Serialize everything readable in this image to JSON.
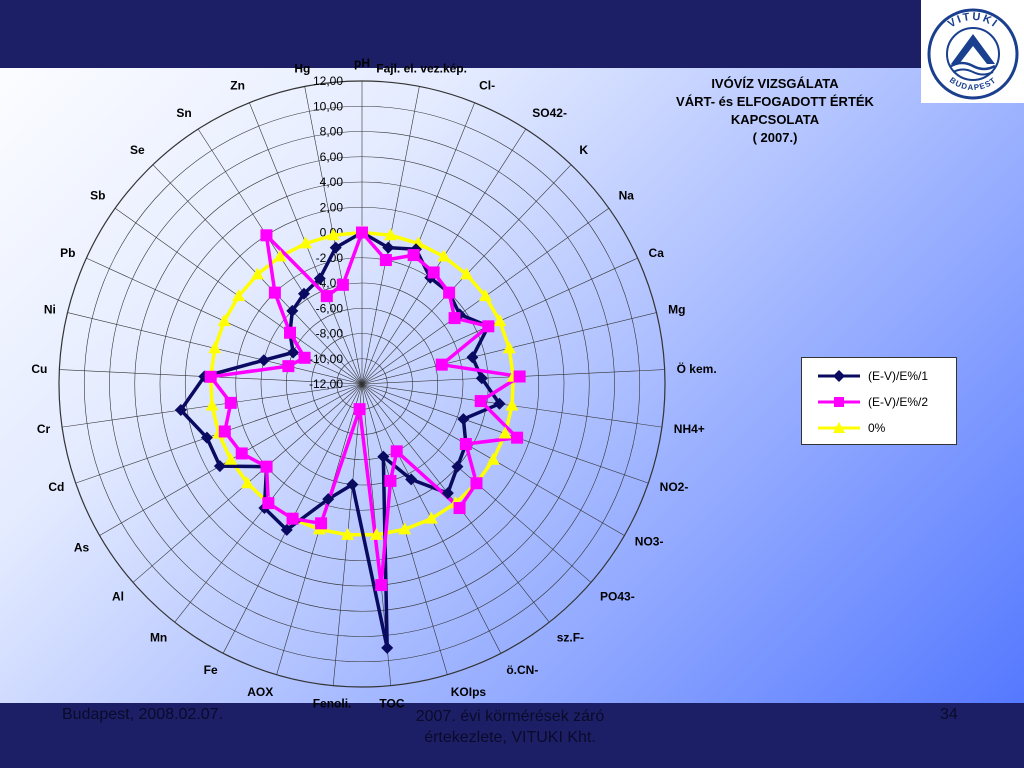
{
  "footer": {
    "date": "Budapest, 2008.02.07.",
    "event_line1": "2007. évi körmérések záró",
    "event_line2": "értekezlete, VITUKI Kht.",
    "page": "34"
  },
  "logo": {
    "top_text": "VITUKI",
    "bottom_text": "BUDAPEST"
  },
  "chart_data": {
    "type": "radar",
    "title_lines": [
      "IVÓVÍZ VIZSGÁLATA",
      "VÁRT- és  ELFOGADOTT ÉRTÉK",
      "KAPCSOLATA",
      "( 2007.)"
    ],
    "categories": [
      "pH",
      "Fajl. el. vez.kép.",
      "Cl-",
      "SO42-",
      "K",
      "Na",
      "Ca",
      "Mg",
      "Ö kem.",
      "NH4+",
      "NO2-",
      "NO3-",
      "PO43-",
      "sz.F-",
      "ö.CN-",
      "KOIps",
      "TOC",
      "Fenoli.",
      "AOX",
      "Fe",
      "Mn",
      "Al",
      "As",
      "Cd",
      "Cr",
      "Cu",
      "Ni",
      "Pb",
      "Sb",
      "Se",
      "Sn",
      "Zn",
      "Hg"
    ],
    "radial_ticks": [
      "12,00",
      "10,00",
      "8,00",
      "6,00",
      "4,00",
      "2,00",
      "0,00",
      "-2,00",
      "-4,00",
      "-6,00",
      "-8,00",
      "-10,00",
      "-12,00"
    ],
    "rlim": [
      -12,
      12
    ],
    "legend_position": "right",
    "series": [
      {
        "name": "(E-V)/E%/1",
        "color": "#0a0a60",
        "marker": "diamond",
        "values": [
          0.0,
          -1.0,
          -0.5,
          -2.0,
          -2.0,
          -2.5,
          -1.0,
          -3.0,
          -2.5,
          -1.0,
          -3.5,
          -2.5,
          -2.0,
          -1.0,
          -3.5,
          -6.0,
          9.0,
          -4.0,
          -2.5,
          1.0,
          0.5,
          -2.0,
          1.0,
          1.0,
          2.5,
          0.5,
          -4.0,
          -6.0,
          -5.0,
          -4.0,
          -3.5,
          -3.0,
          -1.0
        ]
      },
      {
        "name": "(E-V)/E%/2",
        "color": "#ff00ff",
        "marker": "square",
        "values": [
          0.0,
          -2.0,
          -1.0,
          -1.5,
          -2.0,
          -3.0,
          -1.0,
          -5.5,
          0.5,
          -2.5,
          1.0,
          -2.5,
          0.0,
          0.5,
          -6.0,
          -4.0,
          4.0,
          -10.0,
          -0.5,
          0.0,
          0.0,
          -2.0,
          -1.0,
          -0.5,
          -1.5,
          0.0,
          -6.0,
          -7.0,
          -5.0,
          -2.0,
          2.0,
          -4.5,
          -4.0
        ]
      },
      {
        "name": "0%",
        "color": "#ffff00",
        "marker": "triangle",
        "values": [
          0,
          0,
          0,
          0,
          0,
          0,
          0,
          0,
          0,
          0,
          0,
          0,
          0,
          0,
          0,
          0,
          0,
          0,
          0,
          0,
          0,
          0,
          0,
          0,
          0,
          0,
          0,
          0,
          0,
          0,
          0,
          0,
          0
        ]
      }
    ]
  }
}
